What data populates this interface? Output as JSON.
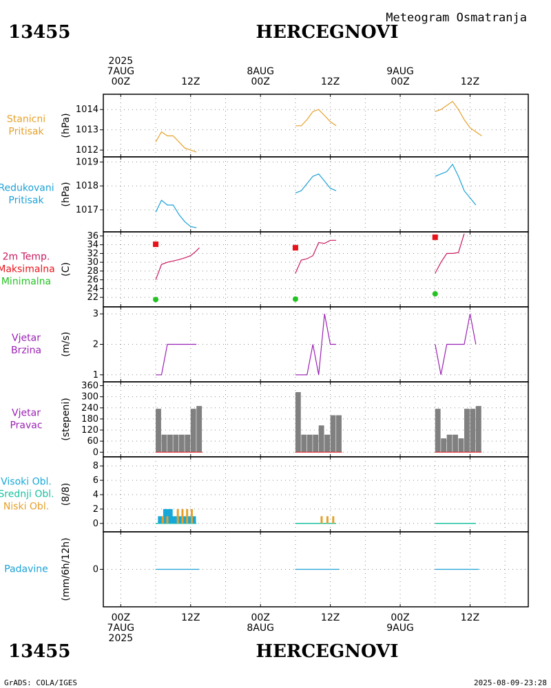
{
  "header": {
    "station_id": "13455",
    "station_name": "HERCEGNOVI",
    "subtitle": "Meteogram Osmatranja"
  },
  "footer": {
    "station_id": "13455",
    "station_name": "HERCEGNOVI",
    "left_note": "GrADS: COLA/IGES",
    "right_note": "2025-08-09-23:28"
  },
  "time_axis": {
    "year": "2025",
    "top_labels": [
      {
        "hour": 0,
        "line1": "2025",
        "line2": "7AUG",
        "line3": "00Z"
      },
      {
        "hour": 12,
        "line1": "",
        "line2": "",
        "line3": "12Z"
      },
      {
        "hour": 24,
        "line1": "",
        "line2": "8AUG",
        "line3": "00Z"
      },
      {
        "hour": 36,
        "line1": "",
        "line2": "",
        "line3": "12Z"
      },
      {
        "hour": 48,
        "line1": "",
        "line2": "9AUG",
        "line3": "00Z"
      },
      {
        "hour": 60,
        "line1": "",
        "line2": "",
        "line3": "12Z"
      }
    ],
    "bottom_labels": [
      {
        "hour": 0,
        "line1": "00Z",
        "line2": "7AUG",
        "line3": "2025"
      },
      {
        "hour": 12,
        "line1": "12Z",
        "line2": "",
        "line3": ""
      },
      {
        "hour": 24,
        "line1": "00Z",
        "line2": "8AUG",
        "line3": ""
      },
      {
        "hour": 36,
        "line1": "12Z",
        "line2": "",
        "line3": ""
      },
      {
        "hour": 48,
        "line1": "00Z",
        "line2": "9AUG",
        "line3": ""
      },
      {
        "hour": 60,
        "line1": "12Z",
        "line2": "",
        "line3": ""
      }
    ],
    "xlim_hours": [
      -3,
      70
    ],
    "grid_hours": [
      0,
      6,
      12,
      18,
      24,
      30,
      36,
      42,
      48,
      54,
      60,
      66
    ]
  },
  "colors": {
    "station_pressure": "#e6a02a",
    "reduced_pressure": "#1ba1d6",
    "temperature": "#c8185f",
    "tmax": "#e8121a",
    "tmin": "#22c322",
    "wind": "#9b1fb4",
    "bars": "#808080",
    "high_cloud": "#16a8d8",
    "mid_cloud": "#18c0a0",
    "low_cloud": "#e6a02a",
    "precip": "#1ba1d6"
  },
  "chart_data": [
    {
      "id": "station_pressure",
      "type": "line",
      "labels": [
        "Stanicni",
        "Pritisak"
      ],
      "label_colors": [
        "station_pressure",
        "station_pressure"
      ],
      "ylabel": "(hPa)",
      "ylim": [
        1011.8,
        1014.55
      ],
      "yticks": [
        1012,
        1013,
        1014
      ],
      "series": [
        {
          "color": "station_pressure",
          "segments": [
            [
              [
                6,
                1012.4
              ],
              [
                7,
                1012.9
              ],
              [
                8,
                1012.7
              ],
              [
                9,
                1012.7
              ],
              [
                10,
                1012.4
              ],
              [
                11,
                1012.1
              ],
              [
                12,
                1012.0
              ],
              [
                13,
                1011.9
              ]
            ],
            [
              [
                30,
                1013.2
              ],
              [
                31,
                1013.2
              ],
              [
                32,
                1013.5
              ],
              [
                33,
                1013.9
              ],
              [
                34,
                1014.0
              ],
              [
                35,
                1013.7
              ],
              [
                36,
                1013.4
              ],
              [
                37,
                1013.2
              ]
            ],
            [
              [
                54,
                1013.9
              ],
              [
                55,
                1014.0
              ],
              [
                56,
                1014.2
              ],
              [
                57,
                1014.4
              ],
              [
                58,
                1014.0
              ],
              [
                59,
                1013.5
              ],
              [
                60,
                1013.1
              ],
              [
                61,
                1012.9
              ],
              [
                62,
                1012.7
              ]
            ]
          ]
        }
      ]
    },
    {
      "id": "reduced_pressure",
      "type": "line",
      "labels": [
        "Redukovani",
        "Pritisak"
      ],
      "label_colors": [
        "reduced_pressure",
        "reduced_pressure"
      ],
      "ylabel": "(hPa)",
      "ylim": [
        1016.25,
        1019.1
      ],
      "yticks": [
        1017,
        1018,
        1019
      ],
      "series": [
        {
          "color": "reduced_pressure",
          "segments": [
            [
              [
                6,
                1016.9
              ],
              [
                7,
                1017.4
              ],
              [
                8,
                1017.2
              ],
              [
                9,
                1017.2
              ],
              [
                10,
                1016.8
              ],
              [
                11,
                1016.5
              ],
              [
                12,
                1016.3
              ],
              [
                13,
                1016.25
              ]
            ],
            [
              [
                30,
                1017.7
              ],
              [
                31,
                1017.8
              ],
              [
                32,
                1018.1
              ],
              [
                33,
                1018.4
              ],
              [
                34,
                1018.5
              ],
              [
                35,
                1018.2
              ],
              [
                36,
                1017.9
              ],
              [
                37,
                1017.8
              ]
            ],
            [
              [
                54,
                1018.4
              ],
              [
                55,
                1018.5
              ],
              [
                56,
                1018.6
              ],
              [
                57,
                1018.9
              ],
              [
                58,
                1018.4
              ],
              [
                59,
                1017.8
              ],
              [
                60,
                1017.5
              ],
              [
                61,
                1017.2
              ]
            ]
          ]
        }
      ]
    },
    {
      "id": "temperature",
      "type": "line",
      "labels": [
        "2m Temp.",
        "Maksimalna",
        "Minimalna"
      ],
      "label_colors": [
        "temperature",
        "tmax",
        "tmin"
      ],
      "ylabel": "(C)",
      "ylim": [
        20.3,
        36.3
      ],
      "yticks": [
        22,
        24,
        26,
        28,
        30,
        32,
        34,
        36
      ],
      "series": [
        {
          "color": "temperature",
          "segments": [
            [
              [
                6,
                26.0
              ],
              [
                7,
                29.5
              ],
              [
                8,
                30.0
              ],
              [
                9,
                30.3
              ],
              [
                10,
                30.6
              ],
              [
                11,
                31.0
              ],
              [
                12,
                31.5
              ],
              [
                13,
                32.6
              ],
              [
                13.5,
                33.3
              ]
            ],
            [
              [
                30,
                27.5
              ],
              [
                31,
                30.5
              ],
              [
                32,
                30.8
              ],
              [
                33,
                31.5
              ],
              [
                34,
                34.5
              ],
              [
                35,
                34.3
              ],
              [
                36,
                35.0
              ],
              [
                37,
                35.0
              ]
            ],
            [
              [
                54,
                27.5
              ],
              [
                55,
                30.0
              ],
              [
                56,
                32.0
              ],
              [
                57,
                32.0
              ],
              [
                58,
                32.2
              ],
              [
                59,
                36.5
              ]
            ]
          ]
        }
      ],
      "markers": [
        {
          "hour": 6,
          "value": 34.1,
          "kind": "tmax"
        },
        {
          "hour": 30,
          "value": 33.3,
          "kind": "tmax"
        },
        {
          "hour": 54,
          "value": 35.7,
          "kind": "tmax"
        },
        {
          "hour": 6,
          "value": 21.5,
          "kind": "tmin"
        },
        {
          "hour": 30,
          "value": 21.6,
          "kind": "tmin"
        },
        {
          "hour": 54,
          "value": 22.8,
          "kind": "tmin"
        }
      ]
    },
    {
      "id": "wind_speed",
      "type": "line",
      "labels": [
        "Vjetar",
        "Brzina"
      ],
      "label_colors": [
        "wind",
        "wind"
      ],
      "ylabel": "(m/s)",
      "ylim": [
        0.95,
        3.05
      ],
      "yticks": [
        1,
        2,
        3
      ],
      "series": [
        {
          "color": "wind",
          "segments": [
            [
              [
                6,
                1
              ],
              [
                7,
                1
              ],
              [
                8,
                2
              ],
              [
                9,
                2
              ],
              [
                10,
                2
              ],
              [
                11,
                2
              ],
              [
                12,
                2
              ],
              [
                13,
                2
              ]
            ],
            [
              [
                30,
                1
              ],
              [
                31,
                1
              ],
              [
                32,
                1
              ],
              [
                33,
                2
              ],
              [
                34,
                1
              ],
              [
                35,
                3
              ],
              [
                36,
                2
              ],
              [
                37,
                2
              ]
            ],
            [
              [
                54,
                2
              ],
              [
                55,
                1
              ],
              [
                56,
                2
              ],
              [
                57,
                2
              ],
              [
                58,
                2
              ],
              [
                59,
                2
              ],
              [
                60,
                3
              ],
              [
                61,
                2
              ]
            ]
          ]
        }
      ]
    },
    {
      "id": "wind_direction",
      "type": "bar",
      "labels": [
        "Vjetar",
        "Pravac"
      ],
      "label_colors": [
        "wind",
        "wind"
      ],
      "ylabel": "(stepeni)",
      "ylim": [
        -10,
        362
      ],
      "yticks": [
        0,
        60,
        120,
        180,
        240,
        300,
        360
      ],
      "ytick_labels": [
        "0",
        "60",
        "120",
        "180",
        "240",
        "300",
        "360"
      ],
      "groups": [
        {
          "hours": [
            6,
            7,
            8,
            9,
            10,
            11,
            12,
            13
          ],
          "values": [
            235,
            95,
            95,
            95,
            95,
            95,
            235,
            250
          ]
        },
        {
          "hours": [
            30,
            31,
            32,
            33,
            34,
            35,
            36,
            37
          ],
          "values": [
            325,
            95,
            95,
            95,
            145,
            95,
            200,
            200
          ]
        },
        {
          "hours": [
            54,
            55,
            56,
            57,
            58,
            59,
            60,
            61
          ],
          "values": [
            235,
            75,
            95,
            95,
            75,
            235,
            235,
            250
          ]
        }
      ]
    },
    {
      "id": "clouds",
      "type": "bar",
      "labels": [
        "Visoki Obl.",
        "Srednji Obl.",
        "Niski Obl."
      ],
      "label_colors": [
        "high_cloud",
        "mid_cloud",
        "low_cloud"
      ],
      "ylabel": "(8/8)",
      "ylim": [
        -0.5,
        8.5
      ],
      "yticks": [
        0,
        2,
        4,
        6,
        8
      ],
      "bars": [
        {
          "hour": 6.8,
          "value": 1,
          "kind": "high_cloud"
        },
        {
          "hour": 7.7,
          "value": 2,
          "kind": "high_cloud"
        },
        {
          "hour": 8.5,
          "value": 2,
          "kind": "high_cloud"
        },
        {
          "hour": 9.3,
          "value": 1,
          "kind": "high_cloud"
        },
        {
          "hour": 10.1,
          "value": 1,
          "kind": "high_cloud"
        },
        {
          "hour": 10.9,
          "value": 1,
          "kind": "high_cloud"
        },
        {
          "hour": 11.7,
          "value": 1,
          "kind": "high_cloud"
        },
        {
          "hour": 12.5,
          "value": 1,
          "kind": "high_cloud"
        },
        {
          "hour": 7.2,
          "value": 1,
          "kind": "low_cloud"
        },
        {
          "hour": 8.0,
          "value": 1,
          "kind": "low_cloud"
        },
        {
          "hour": 9.8,
          "value": 2,
          "kind": "low_cloud"
        },
        {
          "hour": 10.6,
          "value": 2,
          "kind": "low_cloud"
        },
        {
          "hour": 11.4,
          "value": 2,
          "kind": "low_cloud"
        },
        {
          "hour": 12.2,
          "value": 2,
          "kind": "low_cloud"
        },
        {
          "hour": 34.5,
          "value": 1,
          "kind": "low_cloud"
        },
        {
          "hour": 35.5,
          "value": 1,
          "kind": "low_cloud"
        },
        {
          "hour": 36.5,
          "value": 1,
          "kind": "low_cloud"
        }
      ],
      "zero_lines": [
        [
          6,
          13
        ],
        [
          30,
          37
        ],
        [
          54,
          61
        ]
      ]
    },
    {
      "id": "precip",
      "type": "line",
      "labels": [
        "Padavine"
      ],
      "label_colors": [
        "precip"
      ],
      "ylabel": "(mm/6h/12h)",
      "ylim": [
        -5,
        5
      ],
      "yticks": [
        0
      ],
      "series": [
        {
          "color": "precip",
          "segments": [
            [
              [
                6,
                0
              ],
              [
                13.5,
                0
              ]
            ],
            [
              [
                30,
                0
              ],
              [
                37.5,
                0
              ]
            ],
            [
              [
                54,
                0
              ],
              [
                61.5,
                0
              ]
            ]
          ]
        }
      ]
    }
  ]
}
